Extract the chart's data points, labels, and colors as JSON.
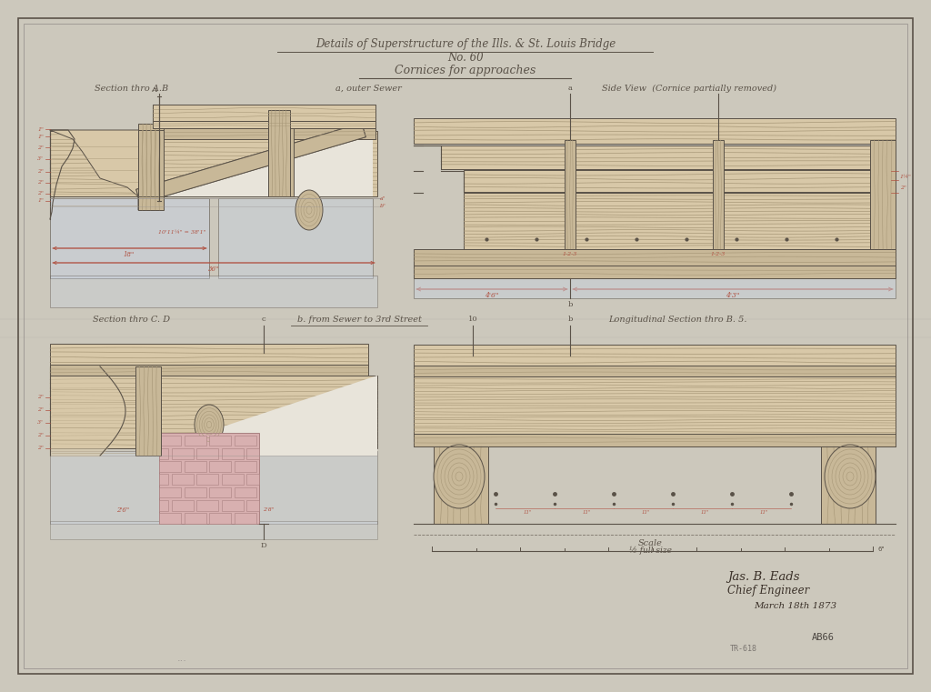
{
  "bg_color": "#ccc8bc",
  "paper_color": "#e8e4da",
  "inner_paper": "#e4e0d6",
  "border_color": "#7a7570",
  "line_color": "#5a5248",
  "line_color_light": "#9a9490",
  "red_color": "#b05040",
  "wood_color": "#d8c8a8",
  "wood_color2": "#c8b898",
  "wood_line_color": "#a89878",
  "wood_dark": "#706050",
  "brick_color": "#d8b0b0",
  "brick_line_color": "#a88080",
  "blue_color": "#c8d0dc",
  "shadow_color": "#b8b0a0",
  "title1": "Details of Superstructure of the Ills. & St. Louis Bridge",
  "title2": "No. 60",
  "title3": "Cornices for approaches",
  "label_section_ab": "Section thro A.B",
  "label_section_cd": "Section thro C. D",
  "label_from_sewer": "b. from Sewer to 3rd Street",
  "label_outer_sewer": "a, outer Sewer",
  "label_side_view": "Side View  (Cornice partially removed)",
  "label_long_section": "Longitudinal Section thro B. 5.",
  "label_scale": "Scale",
  "label_scale2": "½ full size",
  "signature1": "Jas. B. Eads",
  "signature2": "Chief Engineer",
  "date": "March 18th 1873",
  "label_ab66": "AB66",
  "label_tr618": "TR-618"
}
